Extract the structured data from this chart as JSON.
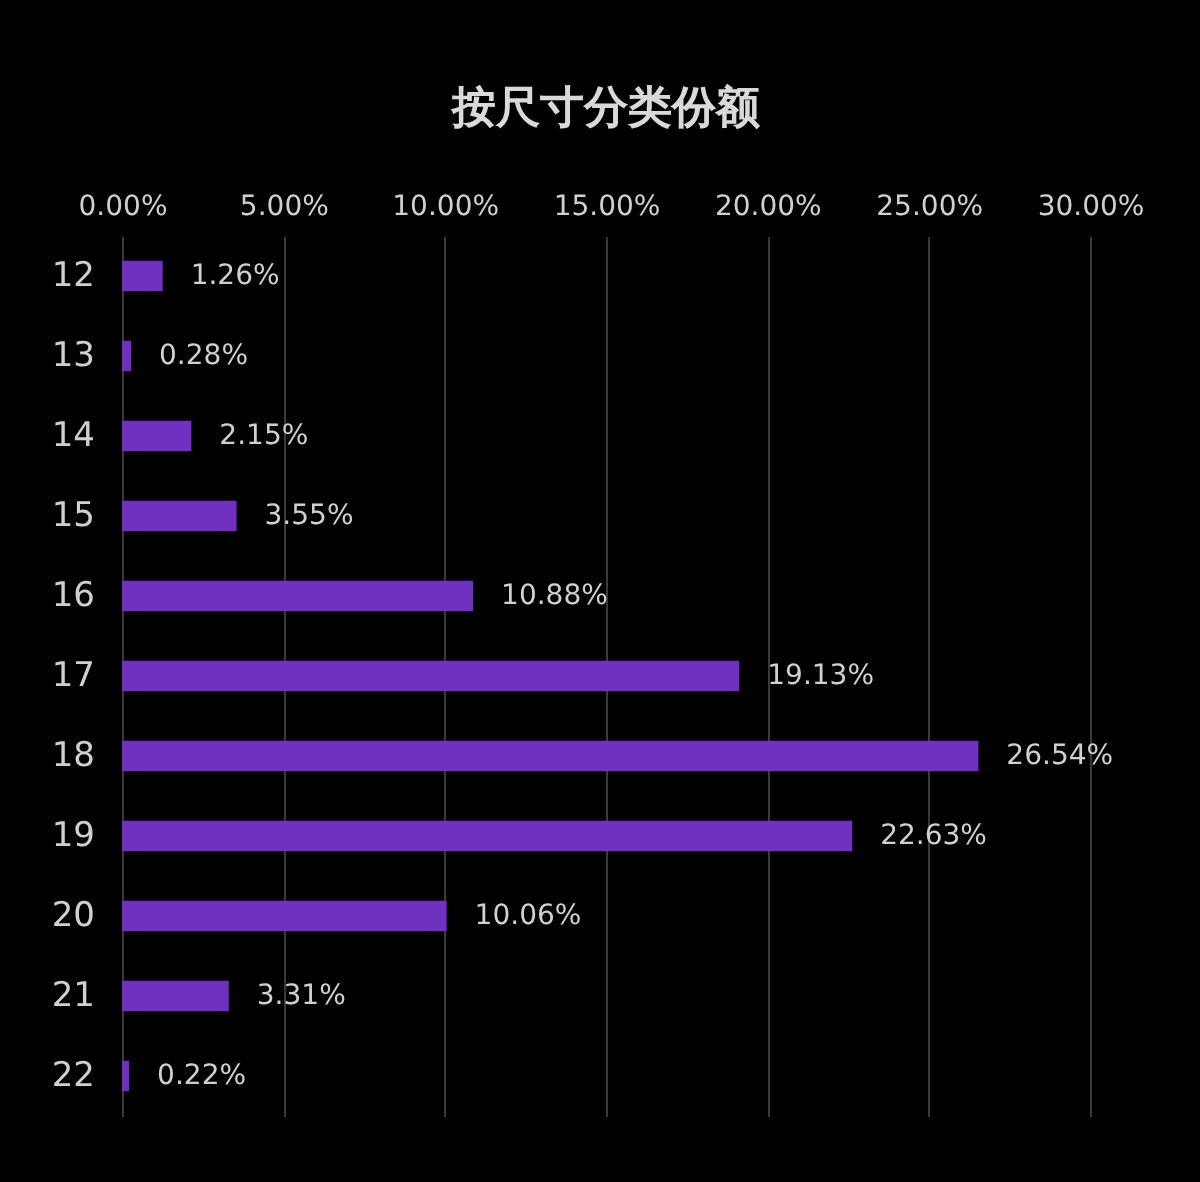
{
  "chart_data": {
    "type": "bar",
    "orientation": "horizontal",
    "title": "按尺寸分类份额",
    "categories": [
      "12",
      "13",
      "14",
      "15",
      "16",
      "17",
      "18",
      "19",
      "20",
      "21",
      "22"
    ],
    "values": [
      1.26,
      0.28,
      2.15,
      3.55,
      10.88,
      19.13,
      26.54,
      22.63,
      10.06,
      3.31,
      0.22
    ],
    "value_labels": [
      "1.26%",
      "0.28%",
      "2.15%",
      "3.55%",
      "10.88%",
      "19.13%",
      "26.54%",
      "22.63%",
      "10.06%",
      "3.31%",
      "0.22%"
    ],
    "color": "#7030c0",
    "xlim": [
      0,
      30
    ],
    "xticks": [
      {
        "value": 0,
        "label": "0.00%"
      },
      {
        "value": 5,
        "label": "5.00%"
      },
      {
        "value": 10,
        "label": "10.00%"
      },
      {
        "value": 15,
        "label": "15.00%"
      },
      {
        "value": 20,
        "label": "20.00%"
      },
      {
        "value": 25,
        "label": "25.00%"
      },
      {
        "value": 30,
        "label": "30.00%"
      }
    ],
    "grid": "x"
  }
}
